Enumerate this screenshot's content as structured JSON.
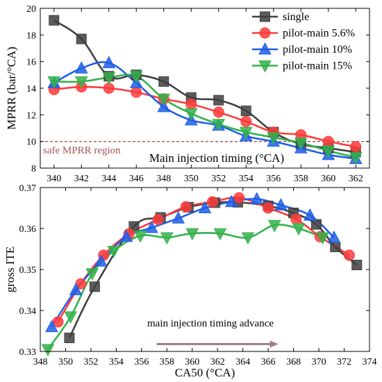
{
  "chart_data": [
    {
      "type": "line",
      "ylabel": "MPRR (bar/°CA)",
      "xlabel": "Main injection timing (°CA)",
      "xlim": [
        339,
        363
      ],
      "ylim": [
        8,
        20
      ],
      "x_ticks": [
        "340",
        "342",
        "344",
        "346",
        "348",
        "350",
        "352",
        "354",
        "356",
        "358",
        "360",
        "362"
      ],
      "y_ticks": [
        "8",
        "10",
        "12",
        "14",
        "16",
        "18",
        "20"
      ],
      "x_tick_values": [
        340,
        342,
        344,
        346,
        348,
        350,
        352,
        354,
        356,
        358,
        360,
        362
      ],
      "y_tick_values": [
        8,
        10,
        12,
        14,
        16,
        18,
        20
      ],
      "grid": false,
      "legend_position": "top-right",
      "x": [
        340,
        342,
        344,
        346,
        348,
        350,
        352,
        354,
        356,
        358,
        360,
        362
      ],
      "series": [
        {
          "name": "single",
          "color": "#404040",
          "marker": "square",
          "values": [
            19.1,
            17.7,
            14.9,
            15.0,
            14.5,
            13.3,
            13.1,
            12.3,
            10.7,
            9.8,
            9.5,
            9.2
          ]
        },
        {
          "name": "pilot-main 5.6%",
          "color": "#ff3b3b",
          "marker": "circle",
          "values": [
            13.9,
            14.1,
            14.0,
            13.7,
            13.2,
            12.8,
            12.2,
            11.5,
            10.7,
            10.5,
            10.0,
            9.6
          ]
        },
        {
          "name": "pilot-main 10%",
          "color": "#1f5fe6",
          "marker": "triangle-up",
          "values": [
            14.4,
            15.5,
            15.9,
            14.4,
            12.6,
            11.6,
            11.2,
            10.4,
            10.0,
            9.5,
            9.0,
            8.7
          ]
        },
        {
          "name": "pilot-main 15%",
          "color": "#33b24a",
          "marker": "triangle-down",
          "values": [
            14.5,
            14.5,
            14.8,
            14.9,
            13.2,
            12.1,
            11.3,
            10.7,
            10.3,
            9.9,
            9.3,
            8.8
          ]
        }
      ],
      "reference_line": {
        "y": 10,
        "label": "safe MPRR region",
        "color": "#a65252"
      }
    },
    {
      "type": "scatter",
      "ylabel": "gross ITE",
      "xlabel": "CA50 (°CA)",
      "xlim": [
        348,
        374
      ],
      "ylim": [
        0.33,
        0.37
      ],
      "x_ticks": [
        "348",
        "350",
        "352",
        "354",
        "356",
        "358",
        "360",
        "362",
        "364",
        "366",
        "368",
        "370",
        "372",
        "374"
      ],
      "y_ticks": [
        "0.33",
        "0.34",
        "0.35",
        "0.36",
        "0.37"
      ],
      "x_tick_values": [
        348,
        350,
        352,
        354,
        356,
        358,
        360,
        362,
        364,
        366,
        368,
        370,
        372,
        374
      ],
      "y_tick_values": [
        0.33,
        0.34,
        0.35,
        0.36,
        0.37
      ],
      "grid": false,
      "annotation": "main injection timing advance",
      "arrow_color": "#a07d7d",
      "arrow_from": [
        357.2,
        0.3318
      ],
      "arrow_to": [
        366.8,
        0.3318
      ],
      "series": [
        {
          "name": "single",
          "color": "#404040",
          "marker": "square",
          "x": [
            350.3,
            352.3,
            355.4,
            357.5,
            359.7,
            361.8,
            363.6,
            366.0,
            368.0,
            369.8,
            371.3,
            373.0
          ],
          "y": [
            0.3333,
            0.3458,
            0.3605,
            0.3627,
            0.3652,
            0.3663,
            0.3664,
            0.3655,
            0.3638,
            0.361,
            0.3555,
            0.3511
          ]
        },
        {
          "name": "pilot-main 5.6%",
          "color": "#ff3b3b",
          "marker": "circle",
          "x": [
            349.4,
            351.2,
            353.0,
            355.0,
            357.3,
            359.5,
            361.6,
            363.7,
            366.0,
            368.2,
            370.1,
            372.4
          ],
          "y": [
            0.3372,
            0.3465,
            0.3535,
            0.3587,
            0.3622,
            0.3653,
            0.3665,
            0.3675,
            0.365,
            0.3623,
            0.358,
            0.3535
          ]
        },
        {
          "name": "pilot-main 10%",
          "color": "#1f5fe6",
          "marker": "triangle-up",
          "x": [
            348.9,
            350.8,
            352.8,
            354.8,
            356.8,
            358.9,
            361.0,
            363.1,
            365.1,
            367.0,
            369.3,
            371.2
          ],
          "y": [
            0.336,
            0.345,
            0.352,
            0.358,
            0.3602,
            0.3625,
            0.365,
            0.3665,
            0.3672,
            0.3657,
            0.3632,
            0.3578
          ]
        },
        {
          "name": "pilot-main 15%",
          "color": "#33b24a",
          "marker": "triangle-down",
          "x": [
            348.6,
            350.4,
            352.1,
            353.8,
            355.9,
            358.0,
            360.0,
            362.2,
            364.4,
            366.5,
            368.4,
            370.3
          ],
          "y": [
            0.3305,
            0.3385,
            0.349,
            0.3545,
            0.3582,
            0.3578,
            0.3588,
            0.3588,
            0.3578,
            0.3608,
            0.36,
            0.3578
          ]
        }
      ]
    }
  ]
}
